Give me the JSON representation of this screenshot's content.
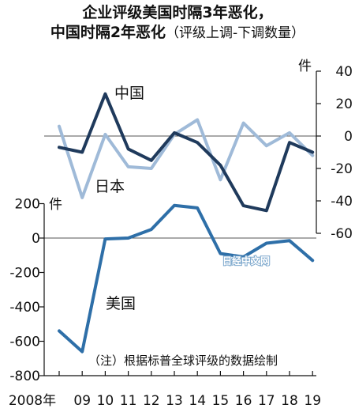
{
  "title_line1": "企业评级美国时隔3年恶化，",
  "title_line2_main": "中国时隔2年恶化",
  "title_line2_sub": "（评级上调-下调数量）",
  "unit_top": "件",
  "unit_bottom": "件",
  "note": "（注）根据标普全球评级的数据绘制",
  "watermark": "日经中文网",
  "colors": {
    "china": "#1f3a5c",
    "japan": "#9fbad8",
    "usa": "#2e6fa8",
    "axis": "#111111",
    "zero": "#555555"
  },
  "chart_data": [
    {
      "type": "line",
      "x": [
        "2008年",
        "09",
        "10",
        "11",
        "12",
        "13",
        "14",
        "15",
        "16",
        "17",
        "18",
        "19"
      ],
      "x_ticks": [
        "2008年",
        "09",
        "10",
        "11",
        "12",
        "13",
        "14",
        "15",
        "16",
        "17",
        "18",
        "19"
      ],
      "yaxis": "right",
      "ylim": [
        -60,
        40
      ],
      "yticks": [
        "40",
        "20",
        "0",
        "-20",
        "-40",
        "-60"
      ],
      "series": [
        {
          "name": "中国",
          "values": [
            -7,
            -10,
            26,
            -8,
            -15,
            2,
            -4,
            -18,
            -43,
            -46,
            -4,
            -10
          ]
        },
        {
          "name": "日本",
          "values": [
            6,
            -38,
            1,
            -19,
            -20,
            1,
            10,
            -27,
            8,
            -6,
            2,
            -12
          ]
        }
      ]
    },
    {
      "type": "line",
      "x": [
        "2008年",
        "09",
        "10",
        "11",
        "12",
        "13",
        "14",
        "15",
        "16",
        "17",
        "18",
        "19"
      ],
      "yaxis": "left",
      "ylim": [
        -800,
        200
      ],
      "yticks": [
        "200",
        "0",
        "-200",
        "-400",
        "-600",
        "-800"
      ],
      "series": [
        {
          "name": "美国",
          "values": [
            -540,
            -660,
            -5,
            0,
            50,
            190,
            175,
            -90,
            -110,
            -30,
            -15,
            -130
          ]
        }
      ]
    }
  ]
}
